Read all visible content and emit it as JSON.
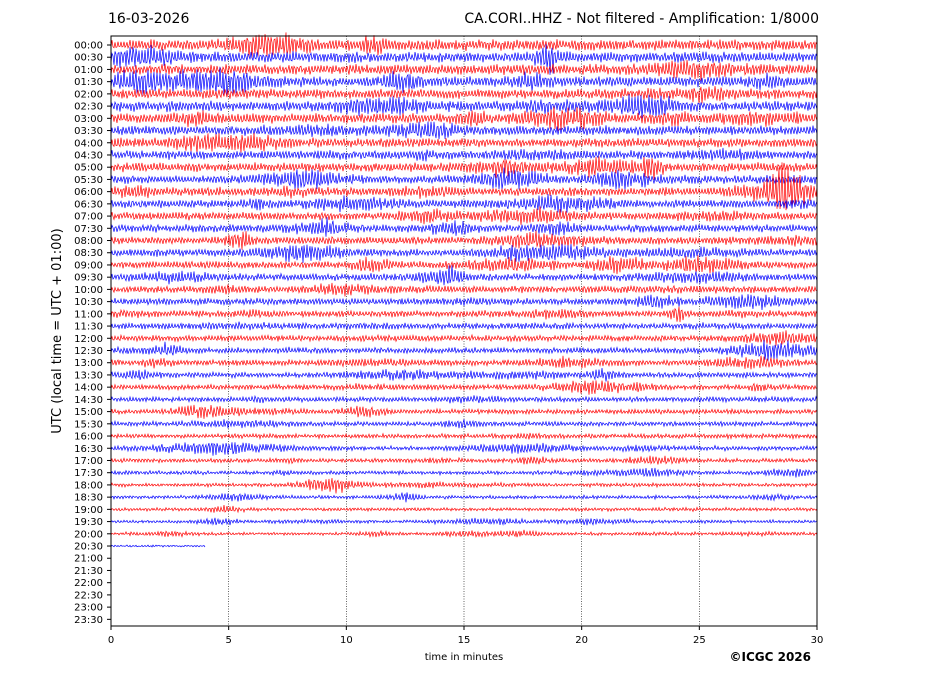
{
  "header": {
    "date": "16-03-2026",
    "title": "CA.CORI..HHZ - Not filtered - Amplification: 1/8000"
  },
  "credit": "©ICGC 2026",
  "chart_data": {
    "type": "line",
    "title": "CA.CORI..HHZ - Not filtered - Amplification: 1/8000",
    "date": "16-03-2026",
    "xlabel": "time in minutes",
    "ylabel": "UTC (local time = UTC + 01:00)",
    "xlim": [
      0,
      30
    ],
    "xticks": [
      0,
      5,
      10,
      15,
      20,
      25,
      30
    ],
    "vertical_gridlines": "dotted at each x tick",
    "rows": [
      "00:00",
      "00:30",
      "01:00",
      "01:30",
      "02:00",
      "02:30",
      "03:00",
      "03:30",
      "04:00",
      "04:30",
      "05:00",
      "05:30",
      "06:00",
      "06:30",
      "07:00",
      "07:30",
      "08:00",
      "08:30",
      "09:00",
      "09:30",
      "10:00",
      "10:30",
      "11:00",
      "11:30",
      "12:00",
      "12:30",
      "13:00",
      "13:30",
      "14:00",
      "14:30",
      "15:00",
      "15:30",
      "16:00",
      "16:30",
      "17:00",
      "17:30",
      "18:00",
      "18:30",
      "19:00",
      "19:30",
      "20:00",
      "20:30",
      "21:00",
      "21:30",
      "22:00",
      "22:30",
      "23:00",
      "23:30"
    ],
    "row_colors": [
      "#ff0000",
      "#0000ff"
    ],
    "recorded_rows": 42,
    "last_row_end_minute": 4.0,
    "series_description": "seismogram traces, one per 30-minute row, alternating red/blue"
  }
}
